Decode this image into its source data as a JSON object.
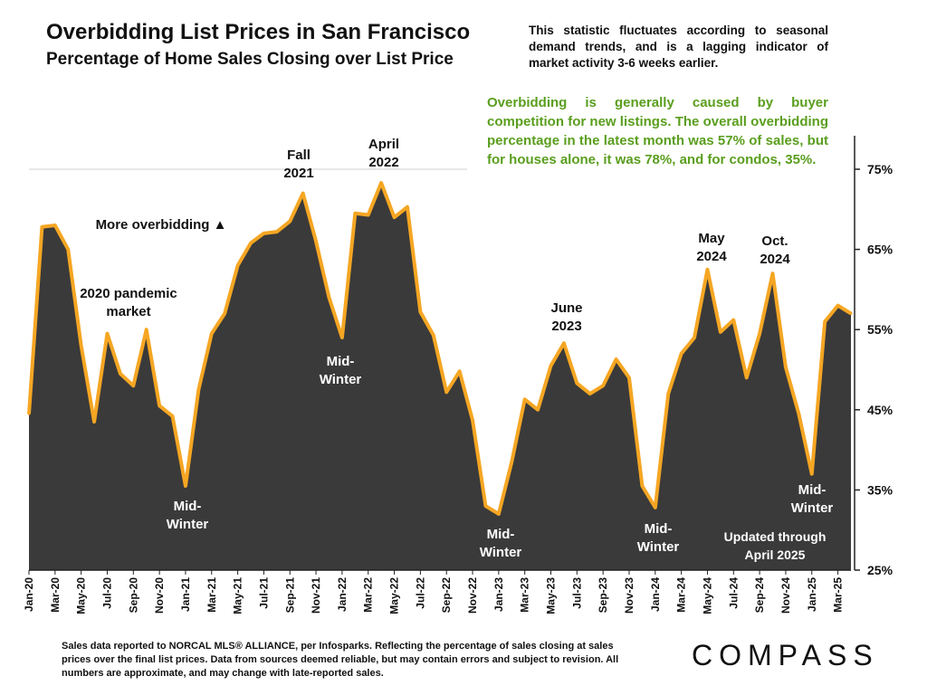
{
  "header": {
    "title": "Overbidding List Prices in San Francisco",
    "subtitle": "Percentage of Home Sales Closing over List Price"
  },
  "notes": {
    "top": "This statistic fluctuates according to seasonal demand trends, and is a lagging indicator of market activity 3-6 weeks earlier.",
    "green": "Overbidding is generally caused by buyer competition for new listings. The overall overbidding percentage in the latest month was 57% of sales, but for houses alone, it was 78%, and for condos, 35%."
  },
  "footer": {
    "text": "Sales data reported to NORCAL MLS® ALLIANCE, per Infosparks. Reflecting the percentage of sales closing at sales prices over the final list prices. Data from sources deemed reliable, but may contain errors and subject to revision. All numbers are approximate, and may change with late-reported sales.",
    "logo": "COMPASS"
  },
  "colors": {
    "area_fill": "#3a3a3a",
    "line": "#f5a623",
    "note_green": "#5a9e1e"
  },
  "chart_data": {
    "type": "area",
    "ylim": [
      25,
      80
    ],
    "yticks": [
      25,
      35,
      45,
      55,
      65,
      75
    ],
    "ytick_labels": [
      "25%",
      "35%",
      "45%",
      "55%",
      "65%",
      "75%"
    ],
    "x_labels": [
      "Jan-20",
      "Mar-20",
      "May-20",
      "Jul-20",
      "Sep-20",
      "Nov-20",
      "Jan-21",
      "Mar-21",
      "May-21",
      "Jul-21",
      "Sep-21",
      "Nov-21",
      "Jan-22",
      "Mar-22",
      "May-22",
      "Jul-22",
      "Sep-22",
      "Nov-22",
      "Jan-23",
      "Mar-23",
      "May-23",
      "Jul-23",
      "Sep-23",
      "Nov-23",
      "Jan-24",
      "Mar-24",
      "May-24",
      "Jul-24",
      "Sep-24",
      "Nov-24",
      "Jan-25",
      "Mar-25"
    ],
    "months": [
      "Jan-20",
      "Feb-20",
      "Mar-20",
      "Apr-20",
      "May-20",
      "Jun-20",
      "Jul-20",
      "Aug-20",
      "Sep-20",
      "Oct-20",
      "Nov-20",
      "Dec-20",
      "Jan-21",
      "Feb-21",
      "Mar-21",
      "Apr-21",
      "May-21",
      "Jun-21",
      "Jul-21",
      "Aug-21",
      "Sep-21",
      "Oct-21",
      "Nov-21",
      "Dec-21",
      "Jan-22",
      "Feb-22",
      "Mar-22",
      "Apr-22",
      "May-22",
      "Jun-22",
      "Jul-22",
      "Aug-22",
      "Sep-22",
      "Oct-22",
      "Nov-22",
      "Dec-22",
      "Jan-23",
      "Feb-23",
      "Mar-23",
      "Apr-23",
      "May-23",
      "Jun-23",
      "Jul-23",
      "Aug-23",
      "Sep-23",
      "Oct-23",
      "Nov-23",
      "Dec-23",
      "Jan-24",
      "Feb-24",
      "Mar-24",
      "Apr-24",
      "May-24",
      "Jun-24",
      "Jul-24",
      "Aug-24",
      "Sep-24",
      "Oct-24",
      "Nov-24",
      "Dec-24",
      "Jan-25",
      "Feb-25",
      "Mar-25",
      "Apr-25"
    ],
    "values": [
      44.5,
      67.8,
      68,
      65,
      53,
      43.5,
      54.5,
      49.5,
      48,
      55,
      45.5,
      44.2,
      35.5,
      47.5,
      54.5,
      57,
      63,
      65.8,
      67,
      67.2,
      68.5,
      72,
      66,
      59,
      54,
      69.5,
      69.3,
      73.3,
      69,
      70.3,
      57.2,
      54.3,
      47.2,
      49.8,
      43.7,
      33,
      32,
      38.5,
      46.3,
      45,
      50.5,
      53.3,
      48.3,
      47,
      48,
      51.3,
      49,
      35.5,
      32.8,
      47,
      52,
      54,
      62.5,
      54.7,
      56.2,
      49,
      54.5,
      62,
      50.3,
      44.5,
      37,
      56,
      58,
      57
    ],
    "annotations": [
      {
        "key": "overbid",
        "text": "More overbidding ▲",
        "color": "#111111"
      },
      {
        "key": "pandemic",
        "lines": [
          "2020 pandemic",
          "market"
        ],
        "color": "#111111"
      },
      {
        "key": "fall2021",
        "lines": [
          "Fall",
          "2021"
        ],
        "color": "#111111"
      },
      {
        "key": "april2022",
        "lines": [
          "April",
          "2022"
        ],
        "color": "#111111"
      },
      {
        "key": "june2023",
        "lines": [
          "June",
          "2023"
        ],
        "color": "#111111"
      },
      {
        "key": "may2024",
        "lines": [
          "May",
          "2024"
        ],
        "color": "#111111"
      },
      {
        "key": "oct2024",
        "lines": [
          "Oct.",
          "2024"
        ],
        "color": "#111111"
      },
      {
        "key": "mw21",
        "lines": [
          "Mid-",
          "Winter"
        ],
        "color": "#ffffff"
      },
      {
        "key": "mw22",
        "lines": [
          "Mid-",
          "Winter"
        ],
        "color": "#ffffff"
      },
      {
        "key": "mw23",
        "lines": [
          "Mid-",
          "Winter"
        ],
        "color": "#ffffff"
      },
      {
        "key": "mw24",
        "lines": [
          "Mid-",
          "Winter"
        ],
        "color": "#ffffff"
      },
      {
        "key": "mw25",
        "lines": [
          "Mid-",
          "Winter"
        ],
        "color": "#ffffff"
      },
      {
        "key": "updated",
        "lines": [
          "Updated through",
          "April 2025"
        ],
        "color": "#ffffff"
      }
    ]
  }
}
